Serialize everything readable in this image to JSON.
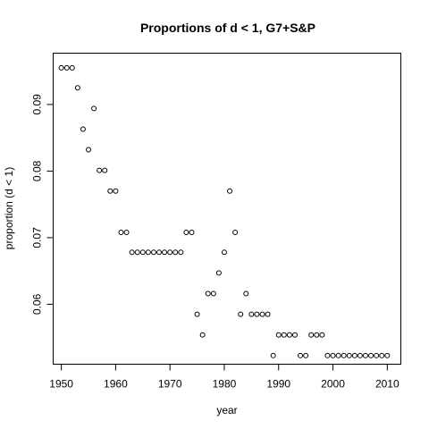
{
  "chart_data": {
    "type": "scatter",
    "title": "Proportions of d < 1, G7+S&P",
    "xlabel": "year",
    "ylabel": "proportion (d < 1)",
    "xlim": [
      1948.5,
      2012.5
    ],
    "ylim": [
      0.051,
      0.0977
    ],
    "xticks": [
      1950,
      1960,
      1970,
      1980,
      1990,
      2000,
      2010
    ],
    "yticks": [
      0.06,
      0.07,
      0.08,
      0.09
    ],
    "ytick_labels": [
      "0.06",
      "0.07",
      "0.08",
      "0.09"
    ],
    "grid": false,
    "marker": "open-circle",
    "x": [
      1950,
      1951,
      1952,
      1953,
      1954,
      1955,
      1956,
      1957,
      1958,
      1959,
      1960,
      1961,
      1962,
      1963,
      1964,
      1965,
      1966,
      1967,
      1968,
      1969,
      1970,
      1971,
      1972,
      1973,
      1974,
      1975,
      1976,
      1977,
      1978,
      1979,
      1980,
      1981,
      1982,
      1983,
      1984,
      1985,
      1986,
      1987,
      1988,
      1989,
      1990,
      1991,
      1992,
      1993,
      1994,
      1995,
      1996,
      1997,
      1998,
      1999,
      2000,
      2001,
      2002,
      2003,
      2004,
      2005,
      2006,
      2007,
      2008,
      2009,
      2010
    ],
    "y": [
      0.0955,
      0.0955,
      0.0955,
      0.0925,
      0.0863,
      0.0832,
      0.0894,
      0.0801,
      0.0801,
      0.077,
      0.077,
      0.0708,
      0.0708,
      0.0678,
      0.0678,
      0.0678,
      0.0678,
      0.0678,
      0.0678,
      0.0678,
      0.0678,
      0.0678,
      0.0678,
      0.0708,
      0.0708,
      0.0585,
      0.0554,
      0.0616,
      0.0616,
      0.0647,
      0.0678,
      0.077,
      0.0708,
      0.0585,
      0.0616,
      0.0585,
      0.0585,
      0.0585,
      0.0585,
      0.0523,
      0.0554,
      0.0554,
      0.0554,
      0.0554,
      0.0523,
      0.0523,
      0.0554,
      0.0554,
      0.0554,
      0.0523,
      0.0523,
      0.0523,
      0.0523,
      0.0523,
      0.0523,
      0.0523,
      0.0523,
      0.0523,
      0.0523,
      0.0523,
      0.0523
    ]
  }
}
